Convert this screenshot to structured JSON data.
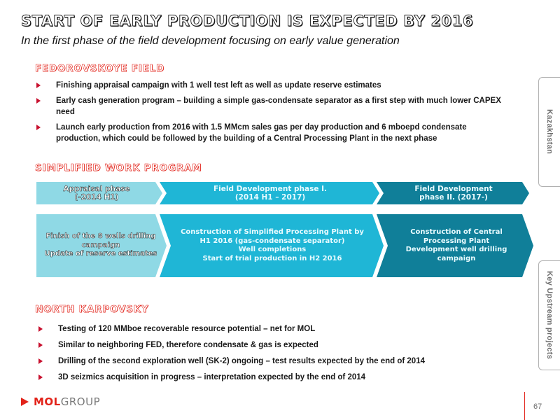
{
  "title": "START OF EARLY PRODUCTION IS EXPECTED BY 2016",
  "subtitle": "In the first phase of the field development focusing on early value generation",
  "fedorovskoye": {
    "heading": "FEDOROVSKOYE FIELD",
    "bullets": [
      "Finishing appraisal campaign with 1 well test left as well as update reserve estimates",
      "Early cash generation program – building a simple gas-condensate separator as a first step with much lower CAPEX need",
      "Launch early production from 2016 with 1.5 MMcm sales gas per day production and 6 mboepd condensate production, which could be followed by the building of a Central Processing Plant in the next phase"
    ]
  },
  "work_program": {
    "heading": "SIMPLIFIED WORK PROGRAM",
    "phases": [
      {
        "header": "Appraisal phase\n(-2014 H1)",
        "detail": "Finish of the 8 wells drilling campaign\nUpdate of reserve estimates",
        "color": "#8fd9e5"
      },
      {
        "header": "Field Development phase I.\n(2014 H1 – 2017)",
        "detail": "Construction of Simplified Processing Plant by H1 2016 (gas-condensate separator)\nWell completions\nStart of trial production in H2 2016",
        "color": "#1fb6d6"
      },
      {
        "header": "Field Development\nphase II. (2017-)",
        "detail": "Construction of Central Processing Plant\nDevelopment well drilling campaign",
        "color": "#107f99"
      }
    ]
  },
  "north_karpovsky": {
    "heading": "NORTH KARPOVSKY",
    "bullets": [
      "Testing of 120 MMboe recoverable resource potential – net for MOL",
      "Similar to neighboring FED, therefore condensate & gas is expected",
      "Drilling of the second exploration well (SK-2) ongoing – test results expected by the end of 2014",
      "3D seizmics acquisition in progress – interpretation expected by the end of 2014"
    ]
  },
  "side_tabs": {
    "top": "Kazakhstan",
    "bottom": "Key Upstream projects"
  },
  "logo": {
    "mol": "MOL",
    "group": "GROUP"
  },
  "page_number": "67",
  "colors": {
    "accent_red": "#e2231a",
    "light_teal": "#8fd9e5",
    "mid_teal": "#1fb6d6",
    "dark_teal": "#107f99"
  }
}
